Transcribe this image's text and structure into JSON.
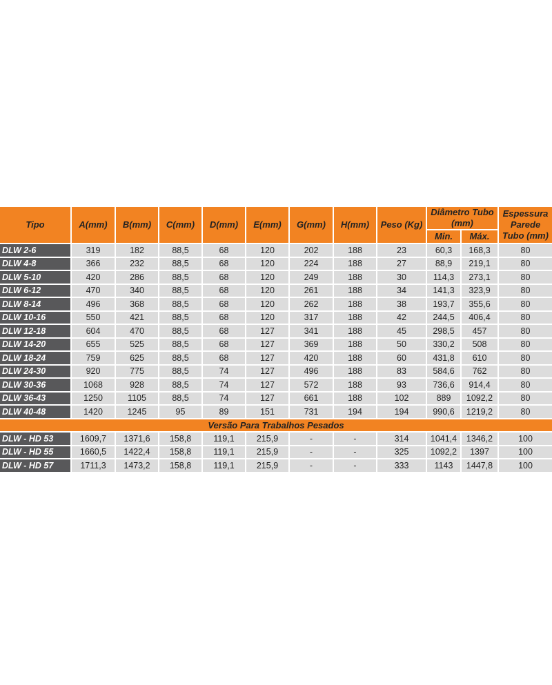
{
  "table": {
    "headers": {
      "tipo": "Tipo",
      "a": "A(mm)",
      "b": "B(mm)",
      "c": "C(mm)",
      "d": "D(mm)",
      "e": "E(mm)",
      "g": "G(mm)",
      "h": "H(mm)",
      "peso": "Peso (Kg)",
      "diametro": "Diâmetro Tubo (mm)",
      "min": "Min.",
      "max": "Máx.",
      "espessura": "Espessura Parede Tubo (mm)"
    },
    "rows": [
      [
        "DLW 2-6",
        "319",
        "182",
        "88,5",
        "68",
        "120",
        "202",
        "188",
        "23",
        "60,3",
        "168,3",
        "80"
      ],
      [
        "DLW 4-8",
        "366",
        "232",
        "88,5",
        "68",
        "120",
        "224",
        "188",
        "27",
        "88,9",
        "219,1",
        "80"
      ],
      [
        "DLW 5-10",
        "420",
        "286",
        "88,5",
        "68",
        "120",
        "249",
        "188",
        "30",
        "114,3",
        "273,1",
        "80"
      ],
      [
        "DLW 6-12",
        "470",
        "340",
        "88,5",
        "68",
        "120",
        "261",
        "188",
        "34",
        "141,3",
        "323,9",
        "80"
      ],
      [
        "DLW 8-14",
        "496",
        "368",
        "88,5",
        "68",
        "120",
        "262",
        "188",
        "38",
        "193,7",
        "355,6",
        "80"
      ],
      [
        "DLW 10-16",
        "550",
        "421",
        "88,5",
        "68",
        "120",
        "317",
        "188",
        "42",
        "244,5",
        "406,4",
        "80"
      ],
      [
        "DLW 12-18",
        "604",
        "470",
        "88,5",
        "68",
        "127",
        "341",
        "188",
        "45",
        "298,5",
        "457",
        "80"
      ],
      [
        "DLW 14-20",
        "655",
        "525",
        "88,5",
        "68",
        "127",
        "369",
        "188",
        "50",
        "330,2",
        "508",
        "80"
      ],
      [
        "DLW 18-24",
        "759",
        "625",
        "88,5",
        "68",
        "127",
        "420",
        "188",
        "60",
        "431,8",
        "610",
        "80"
      ],
      [
        "DLW 24-30",
        "920",
        "775",
        "88,5",
        "74",
        "127",
        "496",
        "188",
        "83",
        "584,6",
        "762",
        "80"
      ],
      [
        "DLW 30-36",
        "1068",
        "928",
        "88,5",
        "74",
        "127",
        "572",
        "188",
        "93",
        "736,6",
        "914,4",
        "80"
      ],
      [
        "DLW 36-43",
        "1250",
        "1105",
        "88,5",
        "74",
        "127",
        "661",
        "188",
        "102",
        "889",
        "1092,2",
        "80"
      ],
      [
        "DLW 40-48",
        "1420",
        "1245",
        "95",
        "89",
        "151",
        "731",
        "194",
        "194",
        "990,6",
        "1219,2",
        "80"
      ]
    ],
    "section_label": "Versão Para Trabalhos Pesados",
    "hd_rows": [
      [
        "DLW - HD 53",
        "1609,7",
        "1371,6",
        "158,8",
        "119,1",
        "215,9",
        "-",
        "-",
        "314",
        "1041,4",
        "1346,2",
        "100"
      ],
      [
        "DLW - HD 55",
        "1660,5",
        "1422,4",
        "158,8",
        "119,1",
        "215,9",
        "-",
        "-",
        "325",
        "1092,2",
        "1397",
        "100"
      ],
      [
        "DLW - HD 57",
        "1711,3",
        "1473,2",
        "158,8",
        "119,1",
        "215,9",
        "-",
        "-",
        "333",
        "1143",
        "1447,8",
        "100"
      ]
    ]
  },
  "colors": {
    "header": "#f28322",
    "tipo_cell": "#58585a",
    "data_cell": "#dcdcdc"
  }
}
